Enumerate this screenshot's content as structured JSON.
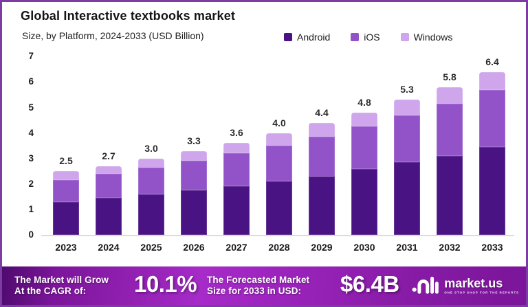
{
  "title": "Global Interactive textbooks market",
  "subtitle": "Size, by Platform, 2024-2033 (USD Billion)",
  "colors": {
    "android": "#4a1384",
    "ios": "#9253c9",
    "windows": "#cfa6ec",
    "border": "#7d3ca3",
    "axis_line": "#dcdcdc",
    "banner_gradient": [
      "#4e0a6e",
      "#7b1599",
      "#a62bc8",
      "#9a23bb",
      "#871ba6",
      "#7b1599"
    ]
  },
  "legend": {
    "items": [
      {
        "label": "Android",
        "color": "#4a1384"
      },
      {
        "label": "iOS",
        "color": "#9253c9"
      },
      {
        "label": "Windows",
        "color": "#cfa6ec"
      }
    ]
  },
  "chart_data": {
    "type": "bar",
    "stacked": true,
    "title": "Global Interactive textbooks market",
    "subtitle": "Size, by Platform, 2024-2033 (USD Billion)",
    "unit": "USD Billion",
    "categories": [
      "2023",
      "2024",
      "2025",
      "2026",
      "2027",
      "2028",
      "2029",
      "2030",
      "2031",
      "2032",
      "2033"
    ],
    "series": [
      {
        "name": "Android",
        "color": "#4a1384",
        "values": [
          1.3,
          1.45,
          1.6,
          1.75,
          1.9,
          2.1,
          2.3,
          2.6,
          2.85,
          3.1,
          3.45
        ]
      },
      {
        "name": "iOS",
        "color": "#9253c9",
        "values": [
          0.85,
          0.95,
          1.05,
          1.15,
          1.3,
          1.4,
          1.55,
          1.65,
          1.85,
          2.05,
          2.25
        ]
      },
      {
        "name": "Windows",
        "color": "#cfa6ec",
        "values": [
          0.35,
          0.3,
          0.35,
          0.4,
          0.4,
          0.5,
          0.55,
          0.55,
          0.6,
          0.65,
          0.7
        ]
      }
    ],
    "totals": [
      2.5,
      2.7,
      3.0,
      3.3,
      3.6,
      4.0,
      4.4,
      4.8,
      5.3,
      5.8,
      6.4
    ],
    "ylim": [
      0,
      7
    ],
    "yticks": [
      0,
      1,
      2,
      3,
      4,
      5,
      6,
      7
    ],
    "grid": false,
    "legend_position": "top-right"
  },
  "banner": {
    "cagr_label_line1": "The Market will Grow",
    "cagr_label_line2": "At the CAGR of:",
    "cagr_value": "10.1%",
    "forecast_label_line1": "The Forecasted Market",
    "forecast_label_line2": "Size for 2033 in USD:",
    "forecast_value": "$6.4B",
    "brand": "market.us",
    "brand_tagline": "ONE STOP SHOP FOR THE REPORTS"
  }
}
